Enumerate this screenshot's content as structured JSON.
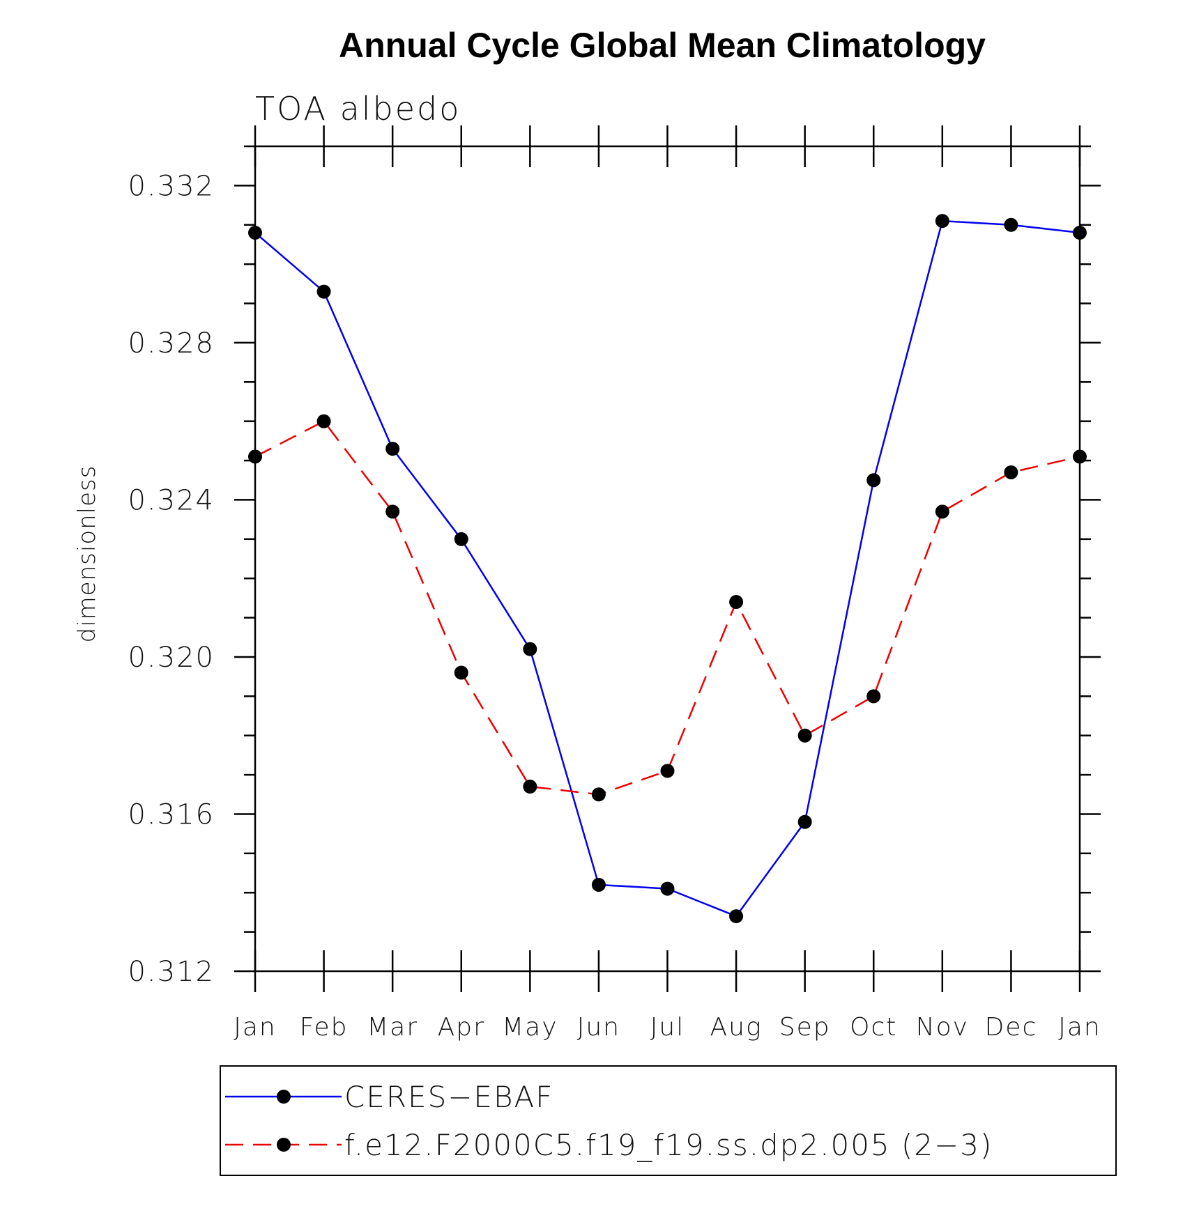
{
  "chart_data": {
    "type": "line",
    "title": "Annual Cycle Global Mean Climatology",
    "subtitle": "TOA albedo",
    "xlabel": "",
    "ylabel": "dimensionless",
    "categories": [
      "Jan",
      "Feb",
      "Mar",
      "Apr",
      "May",
      "Jun",
      "Jul",
      "Aug",
      "Sep",
      "Oct",
      "Nov",
      "Dec",
      "Jan"
    ],
    "ylim": [
      0.312,
      0.333
    ],
    "yticks": [
      "0.312",
      "0.316",
      "0.320",
      "0.324",
      "0.328",
      "0.332"
    ],
    "grid": false,
    "legend_position": "bottom",
    "series": [
      {
        "name": "CERES−EBAF",
        "color": "#0000ee",
        "line_style": "solid",
        "marker": "filled-circle",
        "values": [
          0.3308,
          0.3293,
          0.3253,
          0.323,
          0.3202,
          0.3142,
          0.3141,
          0.3134,
          0.3158,
          0.3245,
          0.3311,
          0.331,
          0.3308
        ]
      },
      {
        "name": "f.e12.F2000C5.f19_f19.ss.dp2.005 (2−3)",
        "color": "#ee0000",
        "line_style": "dashed",
        "marker": "filled-circle",
        "values": [
          0.3251,
          0.326,
          0.3237,
          0.3196,
          0.3167,
          0.3165,
          0.3171,
          0.3214,
          0.318,
          0.319,
          0.3237,
          0.3247,
          0.3251
        ]
      }
    ]
  }
}
